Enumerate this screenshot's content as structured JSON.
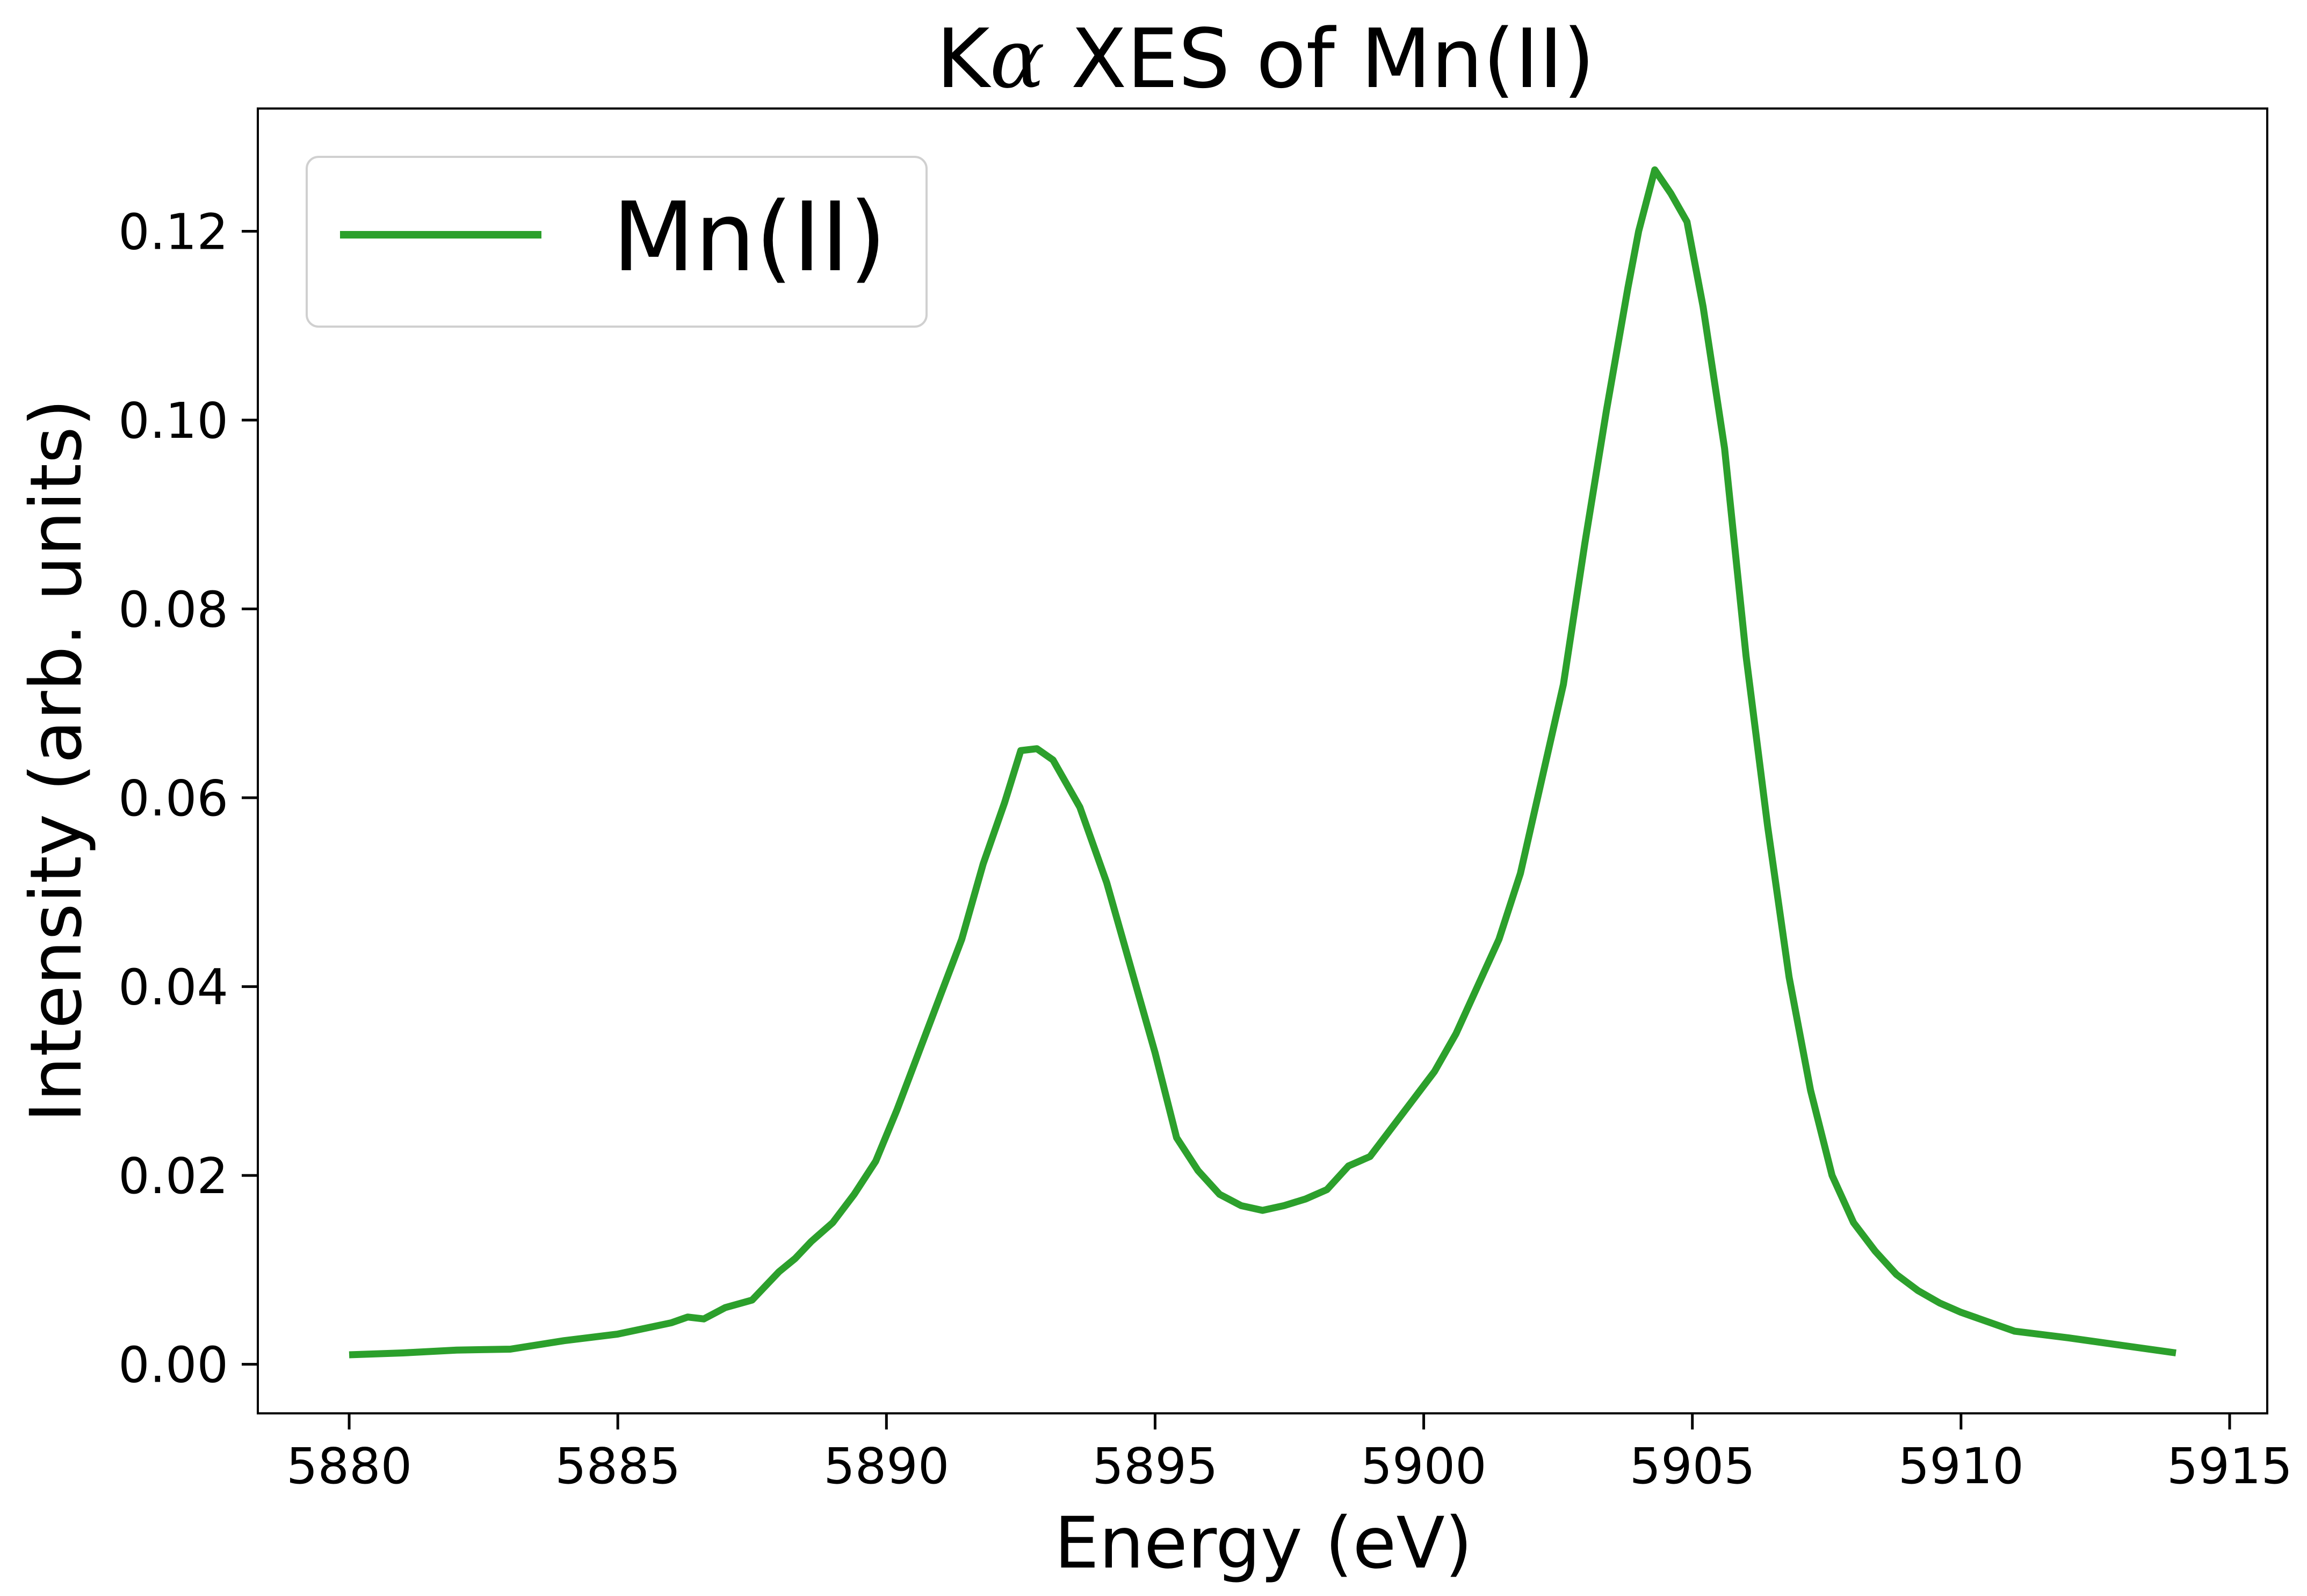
{
  "chart_data": {
    "type": "line",
    "title": "Kα XES of Mn(II)",
    "title_parts": {
      "pre": "K",
      "greek": "α",
      "post": " XES of Mn(II)"
    },
    "xlabel": "Energy (eV)",
    "ylabel": "Intensity (arb. units)",
    "xlim": [
      5878.3,
      5915.7
    ],
    "ylim": [
      -0.0052,
      0.133
    ],
    "x_ticks": [
      5880,
      5885,
      5890,
      5895,
      5900,
      5905,
      5910,
      5915
    ],
    "y_ticks": [
      0.0,
      0.02,
      0.04,
      0.06,
      0.08,
      0.1,
      0.12
    ],
    "y_tick_labels": [
      "0.00",
      "0.02",
      "0.04",
      "0.06",
      "0.08",
      "0.10",
      "0.12"
    ],
    "grid": false,
    "legend": {
      "position": "top-left",
      "frame": true
    },
    "series": [
      {
        "name": "Mn(II)",
        "color": "#2ca02c",
        "x": [
          5880,
          5881,
          5882,
          5883,
          5884,
          5885,
          5886,
          5886.3,
          5886.6,
          5887,
          5887.5,
          5888,
          5888.3,
          5888.6,
          5889,
          5889.4,
          5889.8,
          5890.2,
          5890.6,
          5891,
          5891.4,
          5891.8,
          5892.2,
          5892.5,
          5892.8,
          5893.1,
          5893.6,
          5894.1,
          5894.6,
          5895,
          5895.4,
          5895.8,
          5896.2,
          5896.6,
          5897,
          5897.4,
          5897.8,
          5898.2,
          5898.6,
          5899,
          5899.4,
          5899.8,
          5900.2,
          5900.6,
          5901,
          5901.4,
          5901.8,
          5902.2,
          5902.6,
          5903,
          5903.4,
          5903.8,
          5904,
          5904.3,
          5904.6,
          5904.9,
          5905.2,
          5905.6,
          5906,
          5906.4,
          5906.8,
          5907.2,
          5907.6,
          5908,
          5908.4,
          5908.8,
          5909.2,
          5909.6,
          5910,
          5911,
          5912,
          5913,
          5914
        ],
        "values": [
          0.001,
          0.0012,
          0.0015,
          0.0016,
          0.0025,
          0.0032,
          0.0044,
          0.005,
          0.0048,
          0.006,
          0.0068,
          0.0098,
          0.0112,
          0.013,
          0.015,
          0.018,
          0.0215,
          0.027,
          0.033,
          0.039,
          0.045,
          0.053,
          0.0595,
          0.065,
          0.0652,
          0.064,
          0.059,
          0.051,
          0.041,
          0.033,
          0.024,
          0.0205,
          0.018,
          0.0168,
          0.0163,
          0.0168,
          0.0175,
          0.0185,
          0.021,
          0.022,
          0.025,
          0.028,
          0.031,
          0.035,
          0.04,
          0.045,
          0.052,
          0.062,
          0.072,
          0.087,
          0.101,
          0.114,
          0.12,
          0.1265,
          0.124,
          0.121,
          0.112,
          0.097,
          0.075,
          0.057,
          0.041,
          0.029,
          0.02,
          0.015,
          0.012,
          0.0095,
          0.0078,
          0.0065,
          0.0055,
          0.0035,
          0.0028,
          0.002,
          0.0012
        ]
      }
    ]
  }
}
